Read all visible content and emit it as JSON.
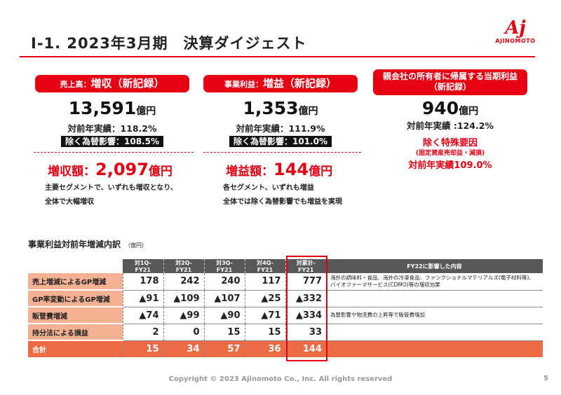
{
  "header": {
    "title": "Ⅰ-1. 2023年3月期　決算ダイジェスト",
    "logo_text": "AJINOMOTO",
    "logo_mark": "Aj"
  },
  "cards": [
    {
      "label_prefix": "売上高：",
      "label_main": "増収（新記録）",
      "value": "13,591",
      "unit": "億円",
      "yoy": "対前年実績：118.2%",
      "fx": "除く為替影響：108.5%",
      "inc_label": "増収額：",
      "inc_value": "2,097",
      "inc_unit": "億円",
      "notes": [
        "主要セグメントで、いずれも増収となり、",
        "全体で大幅増収"
      ]
    },
    {
      "label_prefix": "事業利益：",
      "label_main": "増益（新記録）",
      "value": "1,353",
      "unit": "億円",
      "yoy": "対前年実績：111.9%",
      "fx": "除く為替影響：101.0%",
      "inc_label": "増益額：",
      "inc_value": "144",
      "inc_unit": "億円",
      "notes": [
        "各セグメント、いずれも増益",
        "全体では除く為替影響でも増益を実現"
      ]
    },
    {
      "label_line1": "親会社の所有者に帰属する当期利益",
      "label_line2": "（新記録）",
      "value": "940",
      "unit": "億円",
      "yoy": "対前年実績 :124.2%",
      "special": "除く特殊要因",
      "special_sub": "(固定資産売却益・減損)",
      "special_yoy": "対前年実績109.0%"
    }
  ],
  "table": {
    "title": "事業利益対前年増減内訳",
    "unit": "（億円）",
    "headers": [
      "対1Q-FY21",
      "対2Q-FY21",
      "対3Q-FY21",
      "対4Q-FY21",
      "対累計-FY21",
      "FY22に影響した内容"
    ],
    "rows": [
      {
        "label": "売上増減によるGP増減",
        "values": [
          "178",
          "242",
          "240",
          "117",
          "777"
        ],
        "desc": "海外の調味料・食品、海外の冷凍食品、ファンクショナルマテリアルズ(電子材料等)、バイオファーマサービス(CDMO)等の増収効果"
      },
      {
        "label": "GP率変動によるGP増減",
        "values": [
          "▲91",
          "▲109",
          "▲107",
          "▲25",
          "▲332"
        ],
        "desc": ""
      },
      {
        "label": "販管費増減",
        "values": [
          "▲74",
          "▲99",
          "▲90",
          "▲71",
          "▲334"
        ],
        "desc": "為替影響や物流費の上昇等で販管費増加"
      },
      {
        "label": "持分法による損益",
        "values": [
          "2",
          "0",
          "15",
          "15",
          "33"
        ],
        "desc": ""
      },
      {
        "label": "合計",
        "values": [
          "15",
          "34",
          "57",
          "36",
          "144"
        ],
        "desc": ""
      }
    ]
  },
  "footer": {
    "copyright": "Copyright © 2023 Ajinomoto Co., Inc. All rights reserved",
    "page": "5"
  },
  "colors": {
    "brand_red": "#e60012",
    "table_header": "#595757",
    "row_label": "#f4b193",
    "total_row": "#ec6b45"
  }
}
